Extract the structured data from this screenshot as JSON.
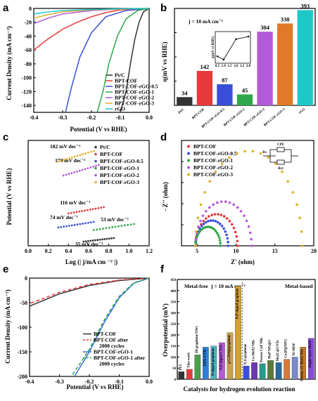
{
  "panel_labels": [
    "a",
    "b",
    "c",
    "d",
    "e",
    "f"
  ],
  "chart_data": [
    {
      "panel": "a",
      "type": "line",
      "xlabel": "Potential (V vs RHE)",
      "ylabel": "Current Density (mA cm⁻²)",
      "xlim": [
        -0.4,
        0.0
      ],
      "ylim": [
        -150,
        0
      ],
      "xticks": [
        "-0.4",
        "-0.3",
        "-0.2",
        "-0.1",
        "0.0"
      ],
      "yticks": [
        "0",
        "-20",
        "-40",
        "-60",
        "-80",
        "-100",
        "-120",
        "-140"
      ],
      "legend_position": "bottom-right",
      "series": [
        {
          "name": "Pt/C",
          "color": "#333333",
          "x": [
            0.0,
            -0.02,
            -0.035,
            -0.05,
            -0.065,
            -0.08,
            -0.1
          ],
          "y": [
            0,
            -5,
            -20,
            -45,
            -80,
            -120,
            -150
          ]
        },
        {
          "name": "BPT-COF",
          "color": "#e8393a",
          "x": [
            0.0,
            -0.1,
            -0.15,
            -0.2,
            -0.25,
            -0.3,
            -0.35,
            -0.4
          ],
          "y": [
            0,
            -2,
            -6,
            -12,
            -20,
            -30,
            -44,
            -60
          ]
        },
        {
          "name": "BPT-COF-rGO-0.5",
          "color": "#3a4fd8",
          "x": [
            0.0,
            -0.08,
            -0.15,
            -0.2,
            -0.24,
            -0.27,
            -0.29
          ],
          "y": [
            0,
            -3,
            -12,
            -35,
            -70,
            -115,
            -150
          ]
        },
        {
          "name": "BPT-COF-rGO-1",
          "color": "#2ea84a",
          "x": [
            0.0,
            -0.04,
            -0.08,
            -0.11,
            -0.14,
            -0.16,
            -0.18
          ],
          "y": [
            0,
            -3,
            -15,
            -40,
            -80,
            -120,
            -150
          ]
        },
        {
          "name": "BPT-COF-rGO-2",
          "color": "#b35ad8",
          "x": [
            0.0,
            -0.1,
            -0.2,
            -0.3,
            -0.35,
            -0.4
          ],
          "y": [
            0,
            -1,
            -3,
            -8,
            -14,
            -22
          ]
        },
        {
          "name": "BPT-COF-rGO-3",
          "color": "#e0b028",
          "x": [
            0.0,
            -0.1,
            -0.2,
            -0.3,
            -0.35,
            -0.4
          ],
          "y": [
            0,
            -1,
            -2,
            -5,
            -9,
            -14
          ]
        },
        {
          "name": "rGO",
          "color": "#1ec8c8",
          "x": [
            0.0,
            -0.1,
            -0.2,
            -0.3,
            -0.35,
            -0.4
          ],
          "y": [
            0,
            -0.5,
            -1.5,
            -3,
            -5,
            -8
          ]
        }
      ]
    },
    {
      "panel": "b",
      "type": "bar",
      "annotation": "j = 10 mA cm⁻²",
      "ylabel": "η(mV vs RHE)",
      "ylim": [
        0,
        400
      ],
      "categories": [
        "Pt/C",
        "BPT-COF",
        "BPT-COF-rGO-0.5",
        "BPT-COF-rGO-1",
        "BPT-COF-rGO-2",
        "BPT-COF-rGO-3",
        "rGO"
      ],
      "values": [
        34,
        142,
        87,
        45,
        304,
        338,
        393
      ],
      "colors": [
        "#333333",
        "#e8393a",
        "#3a4fd8",
        "#2ea84a",
        "#b35ad8",
        "#e07a2a",
        "#1ec8c8"
      ],
      "inset": {
        "type": "line",
        "ylabel": "η(mV vs RHE)",
        "x": [
          0.5,
          1,
          2,
          3
        ],
        "y": [
          87,
          45,
          304,
          338
        ],
        "xticks": [
          "0.5",
          "1.0",
          "1.5",
          "2.0",
          "2.5",
          "3.0"
        ]
      }
    },
    {
      "panel": "c",
      "type": "scatter",
      "xlabel": "Log (| j/mA cm ⁻² |)",
      "ylabel": "Potential (V vs RHE)",
      "xlim": [
        0.0,
        1.2
      ],
      "xticks": [
        "0.0",
        "0.2",
        "0.4",
        "0.6",
        "0.8",
        "1.0",
        "1.2"
      ],
      "legend_position": "top-right",
      "series": [
        {
          "name": "Pt/C",
          "color": "#333333",
          "tafel": "35 mV dec⁻¹",
          "x0": 0.55,
          "x1": 0.85,
          "y0": 0.012,
          "y1": 0.022
        },
        {
          "name": "BPT-COF",
          "color": "#e8393a",
          "tafel": "116 mV dec⁻¹",
          "x0": 0.4,
          "x1": 0.75,
          "y0": 0.092,
          "y1": 0.11
        },
        {
          "name": "BPT-COF-rGO-0.5",
          "color": "#3a4fd8",
          "tafel": "74 mV dec⁻¹",
          "x0": 0.3,
          "x1": 0.65,
          "y0": 0.052,
          "y1": 0.068
        },
        {
          "name": "BPT-COF-rGO-1",
          "color": "#2ea84a",
          "tafel": "53 mV dec⁻¹",
          "x0": 0.65,
          "x1": 1.05,
          "y0": 0.045,
          "y1": 0.062
        },
        {
          "name": "BPT-COF-rGO-2",
          "color": "#b35ad8",
          "tafel": "170 mV dec⁻¹",
          "x0": 0.35,
          "x1": 0.7,
          "y0": 0.2,
          "y1": 0.23
        },
        {
          "name": "BPT-COF-rGO-3",
          "color": "#e0b028",
          "tafel": "182 mV dec⁻¹",
          "x0": 0.3,
          "x1": 0.65,
          "y0": 0.24,
          "y1": 0.27
        }
      ]
    },
    {
      "panel": "d",
      "type": "scatter",
      "xlabel": "Z' (ohm)",
      "ylabel": "- Z'' (ohm)",
      "xlim": [
        3,
        20
      ],
      "ylim": [
        0,
        5
      ],
      "xticks": [
        "5",
        "10",
        "15",
        "20"
      ],
      "yticks": [
        "0",
        "1",
        "2",
        "3",
        "4",
        "5"
      ],
      "legend_position": "top-left",
      "circuit_labels": [
        "CPE",
        "Rs",
        "Rct"
      ],
      "series": [
        {
          "name": "BPT-COF",
          "color": "#e8393a",
          "r_start": 4.8,
          "r_end": 10.2,
          "peak": 1.5
        },
        {
          "name": "BPT-COF-rGO-0.5",
          "color": "#3a4fd8",
          "r_start": 4.8,
          "r_end": 9.0,
          "peak": 1.2
        },
        {
          "name": "BPT-COF-rGO-1",
          "color": "#2ea84a",
          "r_start": 4.8,
          "r_end": 8.0,
          "peak": 0.9
        },
        {
          "name": "BPT-COF-rGO-2",
          "color": "#b35ad8",
          "r_start": 4.8,
          "r_end": 12.0,
          "peak": 2.1
        },
        {
          "name": "BPT-COF-rGO-3",
          "color": "#e0b028",
          "r_start": 4.8,
          "r_end": 18.5,
          "peak": 4.5
        }
      ]
    },
    {
      "panel": "e",
      "type": "line",
      "xlabel": "Potential (V vs RHE)",
      "ylabel": "Current Density (mA cm⁻²)",
      "xlim": [
        -0.4,
        0.0
      ],
      "ylim": [
        -200,
        0
      ],
      "xticks": [
        "-0.4",
        "-0.3",
        "-0.2",
        "-0.1",
        "0.0"
      ],
      "yticks": [
        "0",
        "-50",
        "-100",
        "-150",
        "-200"
      ],
      "legend_position": "bottom-right",
      "series": [
        {
          "name": "BPT-COF",
          "color": "#333333",
          "dash": "",
          "x": [
            0.0,
            -0.1,
            -0.2,
            -0.3,
            -0.4
          ],
          "y": [
            0,
            -5,
            -15,
            -32,
            -57
          ]
        },
        {
          "name": "BPT-COF after 2000 cycles",
          "color": "#e8393a",
          "dash": "5,3",
          "x": [
            0.0,
            -0.1,
            -0.2,
            -0.3,
            -0.4
          ],
          "y": [
            0,
            -4,
            -13,
            -29,
            -52
          ]
        },
        {
          "name": "BPT-COF-rGO-1",
          "color": "#3a6fd8",
          "dash": "",
          "x": [
            0.0,
            -0.05,
            -0.1,
            -0.15,
            -0.2,
            -0.25
          ],
          "y": [
            0,
            -10,
            -40,
            -90,
            -150,
            -200
          ]
        },
        {
          "name": "BPT-COF-rGO-1 after 2000 cycles",
          "color": "#2ea84a",
          "dash": "5,3",
          "x": [
            0.0,
            -0.05,
            -0.1,
            -0.15,
            -0.2,
            -0.26
          ],
          "y": [
            0,
            -9,
            -37,
            -85,
            -145,
            -200
          ]
        }
      ]
    },
    {
      "panel": "f",
      "type": "bar",
      "annotation": "j = 10 mA cm⁻²",
      "ylabel": "Overpotential (mV)",
      "xlabel": "Catalysts for hydrogen evolution reaction",
      "ylim": [
        0,
        450
      ],
      "yticks": [
        "0",
        "50",
        "100",
        "150",
        "200",
        "250",
        "300",
        "350",
        "400",
        "450"
      ],
      "group_labels": [
        "Metal-free",
        "Metal-based"
      ],
      "categories": [
        "Pt/C",
        "This work",
        "3D graphene NWs",
        "EDA-CNTs",
        "N-doped graphene",
        "N,P-doped CNTs",
        "g-C3N4@graphene",
        "N,P-doped graphene",
        "N,S-graphene",
        "Co-MoS2 NBs",
        "Porous CoP NBs",
        "MoP NPs@C",
        "Mo2C@CNTs",
        "Co2P@NPG",
        "Ni-MOF",
        "Porous 1T MoS2 NSs",
        "Single-layer MoS2"
      ],
      "values": [
        34,
        45,
        110,
        145,
        150,
        165,
        210,
        420,
        60,
        75,
        70,
        85,
        75,
        90,
        100,
        145,
        185
      ],
      "colors": [
        "#333333",
        "#e8393a",
        "#4aa04a",
        "#2e7fd8",
        "#4ab0c0",
        "#b35ad8",
        "#c8a050",
        "#d4a030",
        "#3a4fd8",
        "#6a3ab0",
        "#2a9a8a",
        "#5a7a3a",
        "#2a6a9a",
        "#d87a3a",
        "#7a8ac8",
        "#c07a2a",
        "#8a4ad8"
      ]
    }
  ]
}
